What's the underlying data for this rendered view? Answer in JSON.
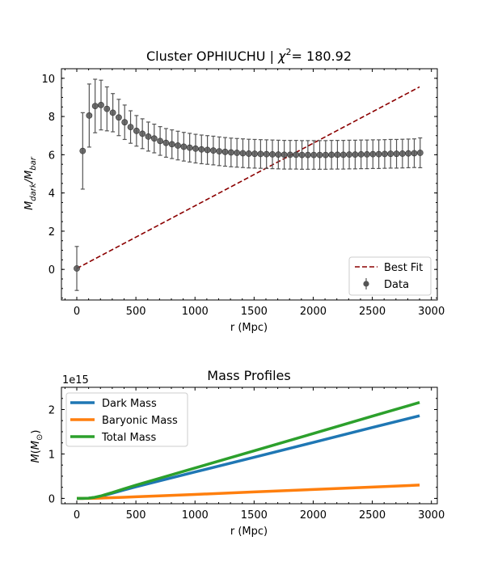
{
  "figure": {
    "top_title_prefix": "Cluster OPHIUCHU | ",
    "top_title_chi": "χ",
    "top_title_sup": "2",
    "top_title_suffix": "= 180.92",
    "bottom_title": "Mass Profiles",
    "bottom_offset": "1e15"
  },
  "colors": {
    "best_fit": "#8b0000",
    "data": "#555555",
    "dark_mass": "#1f77b4",
    "baryonic_mass": "#ff7f0e",
    "total_mass": "#2ca02c"
  },
  "chart_data": [
    {
      "type": "scatter",
      "title": "Cluster OPHIUCHU | χ2= 180.92",
      "xlabel": "r (Mpc)",
      "ylabel": "M_dark/M_bar",
      "xlim": [
        -130,
        3050
      ],
      "ylim": [
        -1.6,
        10.5
      ],
      "xticks": [
        0,
        500,
        1000,
        1500,
        2000,
        2500,
        3000
      ],
      "yticks": [
        0,
        2,
        4,
        6,
        8,
        10
      ],
      "legend": "bottom-right",
      "series": [
        {
          "name": "Best Fit",
          "kind": "line",
          "style": "dashed",
          "x": [
            0,
            2900
          ],
          "y": [
            0.05,
            9.55
          ]
        },
        {
          "name": "Data",
          "kind": "errorbar",
          "x": [
            0,
            50,
            105,
            155,
            205,
            255,
            305,
            355,
            405,
            455,
            505,
            555,
            605,
            655,
            705,
            755,
            805,
            855,
            905,
            955,
            1005,
            1055,
            1105,
            1155,
            1205,
            1255,
            1305,
            1355,
            1405,
            1455,
            1505,
            1555,
            1605,
            1655,
            1705,
            1755,
            1805,
            1855,
            1905,
            1955,
            2005,
            2055,
            2105,
            2155,
            2205,
            2255,
            2305,
            2355,
            2405,
            2455,
            2505,
            2555,
            2605,
            2655,
            2705,
            2755,
            2805,
            2855,
            2905
          ],
          "y": [
            0.05,
            6.2,
            8.05,
            8.55,
            8.6,
            8.4,
            8.2,
            7.95,
            7.7,
            7.45,
            7.25,
            7.1,
            6.95,
            6.85,
            6.72,
            6.62,
            6.55,
            6.48,
            6.42,
            6.37,
            6.32,
            6.28,
            6.25,
            6.22,
            6.18,
            6.15,
            6.12,
            6.1,
            6.08,
            6.06,
            6.05,
            6.04,
            6.03,
            6.02,
            6.01,
            6.0,
            6.0,
            6.0,
            5.99,
            5.99,
            5.99,
            5.99,
            5.99,
            6.0,
            6.0,
            6.0,
            6.01,
            6.01,
            6.02,
            6.02,
            6.03,
            6.03,
            6.04,
            6.05,
            6.05,
            6.06,
            6.07,
            6.08,
            6.1
          ],
          "yerr": [
            1.15,
            2.0,
            1.65,
            1.4,
            1.3,
            1.15,
            1.0,
            0.95,
            0.9,
            0.85,
            0.8,
            0.78,
            0.76,
            0.75,
            0.75,
            0.75,
            0.75,
            0.75,
            0.75,
            0.75,
            0.75,
            0.75,
            0.75,
            0.75,
            0.75,
            0.75,
            0.75,
            0.75,
            0.75,
            0.75,
            0.75,
            0.75,
            0.75,
            0.75,
            0.75,
            0.75,
            0.75,
            0.75,
            0.75,
            0.75,
            0.75,
            0.75,
            0.75,
            0.75,
            0.75,
            0.75,
            0.75,
            0.75,
            0.75,
            0.75,
            0.75,
            0.75,
            0.75,
            0.75,
            0.75,
            0.75,
            0.75,
            0.75,
            0.78
          ]
        }
      ]
    },
    {
      "type": "line",
      "title": "Mass Profiles",
      "xlabel": "r (Mpc)",
      "ylabel": "M(M_⊙)",
      "xlim": [
        -130,
        3050
      ],
      "ylim": [
        -0.12,
        2.5
      ],
      "y_scale_factor": "1e15",
      "xticks": [
        0,
        500,
        1000,
        1500,
        2000,
        2500,
        3000
      ],
      "yticks": [
        0,
        1,
        2
      ],
      "legend": "top-left",
      "x": [
        0,
        50,
        100,
        150,
        200,
        300,
        400,
        500,
        700,
        1000,
        1500,
        2000,
        2500,
        2900
      ],
      "series": [
        {
          "name": "Dark Mass",
          "values": [
            0,
            0,
            0.005,
            0.02,
            0.045,
            0.115,
            0.19,
            0.26,
            0.395,
            0.595,
            0.925,
            1.26,
            1.595,
            1.86
          ]
        },
        {
          "name": "Baryonic Mass",
          "values": [
            0,
            0,
            0,
            0.003,
            0.007,
            0.016,
            0.026,
            0.037,
            0.058,
            0.09,
            0.145,
            0.2,
            0.255,
            0.3
          ]
        },
        {
          "name": "Total Mass",
          "values": [
            0,
            0,
            0.005,
            0.023,
            0.052,
            0.131,
            0.216,
            0.297,
            0.453,
            0.685,
            1.07,
            1.46,
            1.85,
            2.16
          ]
        }
      ]
    }
  ]
}
